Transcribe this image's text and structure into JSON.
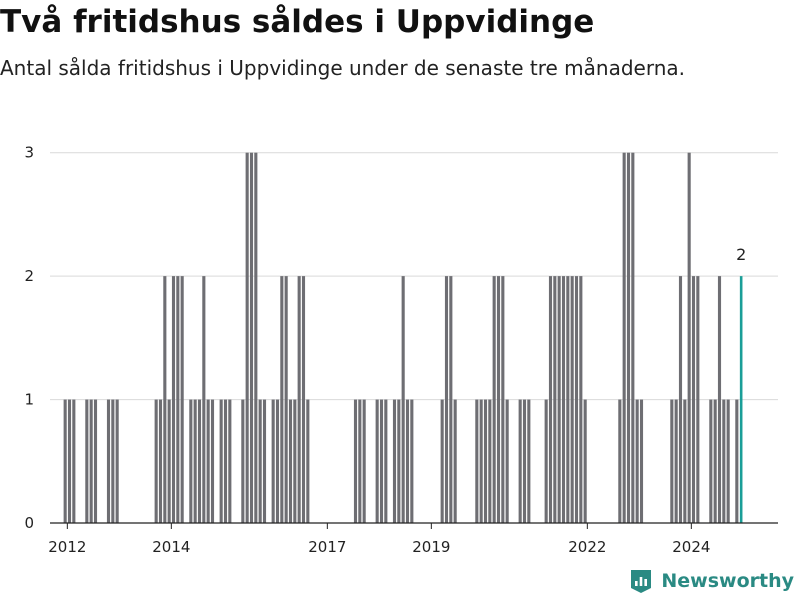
{
  "colors": {
    "bar": "#6e6e73",
    "highlight": "#1a9e98",
    "brand": "#2a8a83"
  },
  "brand": {
    "name": "Newsworthy",
    "icon": "newsworthy-logo-icon"
  },
  "chart_data": {
    "type": "bar",
    "title": "Två fritidshus såldes i Uppvidinge",
    "subtitle": "Antal sålda fritidshus i Uppvidinge under de senaste tre månaderna.",
    "x_range": [
      "2011-09",
      "2025-09"
    ],
    "y_range": [
      0,
      3.2
    ],
    "y_ticks": [
      0,
      1,
      2,
      3
    ],
    "x_ticks": [
      {
        "label": "2012",
        "date": "2012-01"
      },
      {
        "label": "2014",
        "date": "2014-01"
      },
      {
        "label": "2017",
        "date": "2017-01"
      },
      {
        "label": "2019",
        "date": "2019-01"
      },
      {
        "label": "2022",
        "date": "2022-01"
      },
      {
        "label": "2024",
        "date": "2024-01"
      }
    ],
    "grid": true,
    "highlight": {
      "date": "2024-12",
      "value": 2,
      "label": "2"
    },
    "values": [
      {
        "date": "2011-12",
        "value": 1
      },
      {
        "date": "2012-01",
        "value": 1
      },
      {
        "date": "2012-02",
        "value": 1
      },
      {
        "date": "2012-05",
        "value": 1
      },
      {
        "date": "2012-06",
        "value": 1
      },
      {
        "date": "2012-07",
        "value": 1
      },
      {
        "date": "2012-10",
        "value": 1
      },
      {
        "date": "2012-11",
        "value": 1
      },
      {
        "date": "2012-12",
        "value": 1
      },
      {
        "date": "2013-09",
        "value": 1
      },
      {
        "date": "2013-10",
        "value": 1
      },
      {
        "date": "2013-11",
        "value": 2
      },
      {
        "date": "2013-12",
        "value": 1
      },
      {
        "date": "2014-01",
        "value": 2
      },
      {
        "date": "2014-02",
        "value": 2
      },
      {
        "date": "2014-03",
        "value": 2
      },
      {
        "date": "2014-05",
        "value": 1
      },
      {
        "date": "2014-06",
        "value": 1
      },
      {
        "date": "2014-07",
        "value": 1
      },
      {
        "date": "2014-08",
        "value": 2
      },
      {
        "date": "2014-09",
        "value": 1
      },
      {
        "date": "2014-10",
        "value": 1
      },
      {
        "date": "2014-12",
        "value": 1
      },
      {
        "date": "2015-01",
        "value": 1
      },
      {
        "date": "2015-02",
        "value": 1
      },
      {
        "date": "2015-05",
        "value": 1
      },
      {
        "date": "2015-06",
        "value": 3
      },
      {
        "date": "2015-07",
        "value": 3
      },
      {
        "date": "2015-08",
        "value": 3
      },
      {
        "date": "2015-09",
        "value": 1
      },
      {
        "date": "2015-10",
        "value": 1
      },
      {
        "date": "2015-12",
        "value": 1
      },
      {
        "date": "2016-01",
        "value": 1
      },
      {
        "date": "2016-02",
        "value": 2
      },
      {
        "date": "2016-03",
        "value": 2
      },
      {
        "date": "2016-04",
        "value": 1
      },
      {
        "date": "2016-05",
        "value": 1
      },
      {
        "date": "2016-06",
        "value": 2
      },
      {
        "date": "2016-07",
        "value": 2
      },
      {
        "date": "2016-08",
        "value": 1
      },
      {
        "date": "2017-07",
        "value": 1
      },
      {
        "date": "2017-08",
        "value": 1
      },
      {
        "date": "2017-09",
        "value": 1
      },
      {
        "date": "2017-12",
        "value": 1
      },
      {
        "date": "2018-01",
        "value": 1
      },
      {
        "date": "2018-02",
        "value": 1
      },
      {
        "date": "2018-04",
        "value": 1
      },
      {
        "date": "2018-05",
        "value": 1
      },
      {
        "date": "2018-06",
        "value": 2
      },
      {
        "date": "2018-07",
        "value": 1
      },
      {
        "date": "2018-08",
        "value": 1
      },
      {
        "date": "2019-03",
        "value": 1
      },
      {
        "date": "2019-04",
        "value": 2
      },
      {
        "date": "2019-05",
        "value": 2
      },
      {
        "date": "2019-06",
        "value": 1
      },
      {
        "date": "2019-11",
        "value": 1
      },
      {
        "date": "2019-12",
        "value": 1
      },
      {
        "date": "2020-01",
        "value": 1
      },
      {
        "date": "2020-02",
        "value": 1
      },
      {
        "date": "2020-03",
        "value": 2
      },
      {
        "date": "2020-04",
        "value": 2
      },
      {
        "date": "2020-05",
        "value": 2
      },
      {
        "date": "2020-06",
        "value": 1
      },
      {
        "date": "2020-09",
        "value": 1
      },
      {
        "date": "2020-10",
        "value": 1
      },
      {
        "date": "2020-11",
        "value": 1
      },
      {
        "date": "2021-03",
        "value": 1
      },
      {
        "date": "2021-04",
        "value": 2
      },
      {
        "date": "2021-05",
        "value": 2
      },
      {
        "date": "2021-06",
        "value": 2
      },
      {
        "date": "2021-07",
        "value": 2
      },
      {
        "date": "2021-08",
        "value": 2
      },
      {
        "date": "2021-09",
        "value": 2
      },
      {
        "date": "2021-10",
        "value": 2
      },
      {
        "date": "2021-11",
        "value": 2
      },
      {
        "date": "2021-12",
        "value": 1
      },
      {
        "date": "2022-08",
        "value": 1
      },
      {
        "date": "2022-09",
        "value": 3
      },
      {
        "date": "2022-10",
        "value": 3
      },
      {
        "date": "2022-11",
        "value": 3
      },
      {
        "date": "2022-12",
        "value": 1
      },
      {
        "date": "2023-01",
        "value": 1
      },
      {
        "date": "2023-08",
        "value": 1
      },
      {
        "date": "2023-09",
        "value": 1
      },
      {
        "date": "2023-10",
        "value": 2
      },
      {
        "date": "2023-11",
        "value": 1
      },
      {
        "date": "2023-12",
        "value": 3
      },
      {
        "date": "2024-01",
        "value": 2
      },
      {
        "date": "2024-02",
        "value": 2
      },
      {
        "date": "2024-05",
        "value": 1
      },
      {
        "date": "2024-06",
        "value": 1
      },
      {
        "date": "2024-07",
        "value": 2
      },
      {
        "date": "2024-08",
        "value": 1
      },
      {
        "date": "2024-09",
        "value": 1
      },
      {
        "date": "2024-11",
        "value": 1
      },
      {
        "date": "2024-12",
        "value": 2
      }
    ]
  }
}
